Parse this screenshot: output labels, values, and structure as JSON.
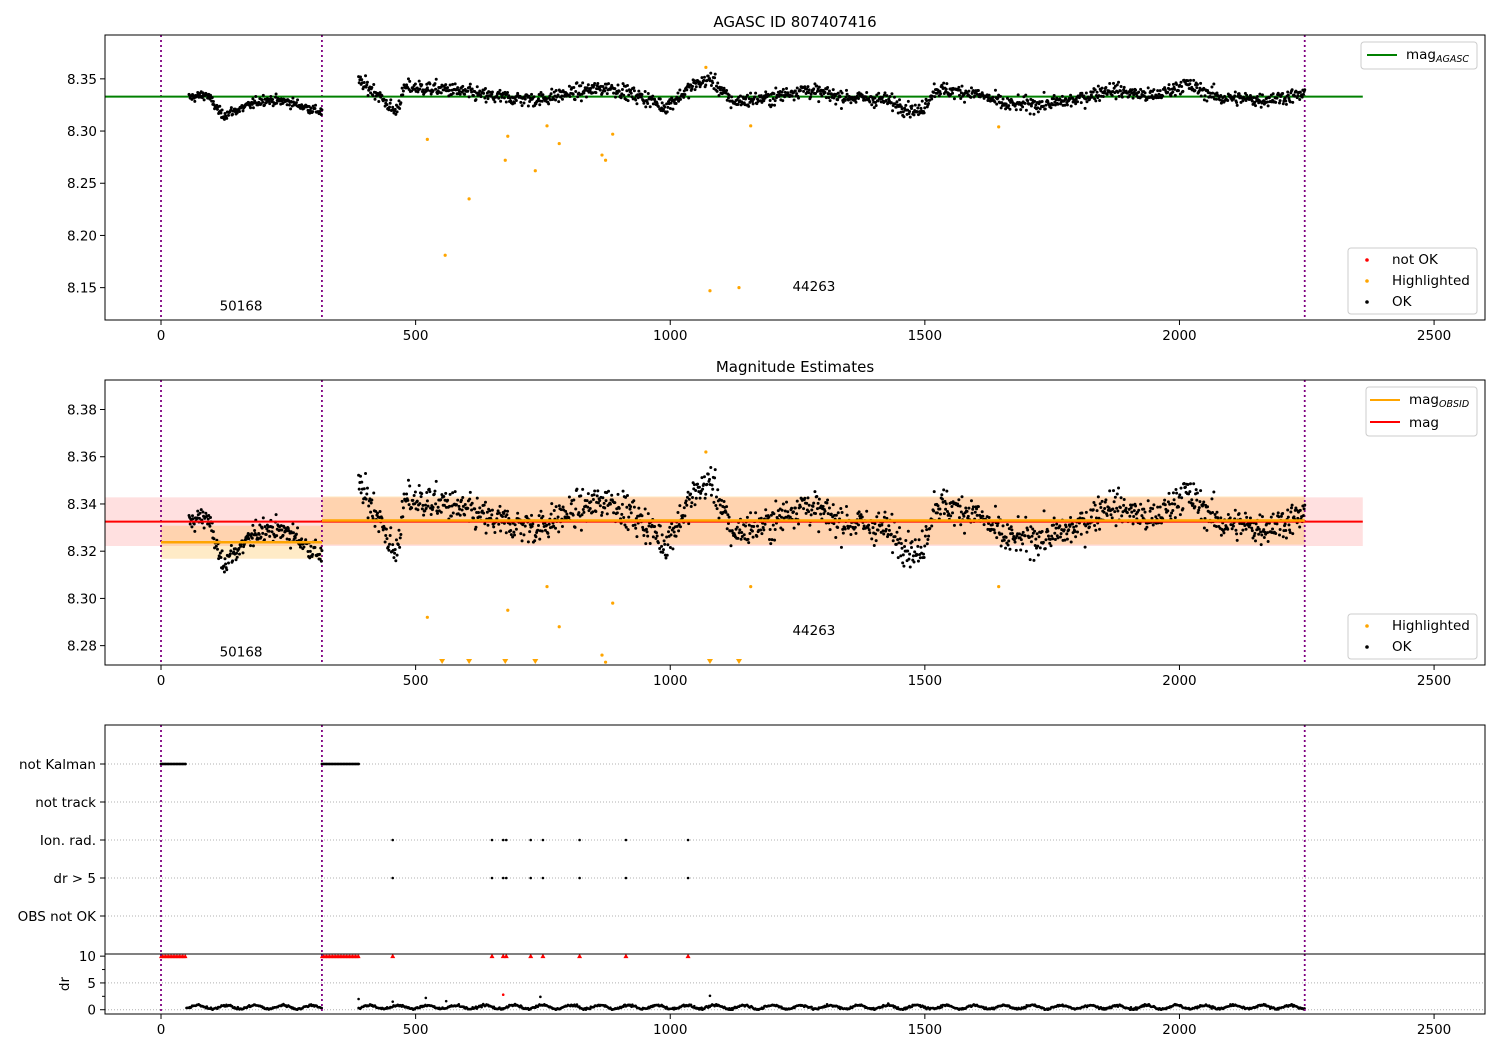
{
  "chart_data": [
    {
      "id": "agasc",
      "type": "scatter",
      "title": "AGASC ID 807407416",
      "xlim": [
        -110,
        2600
      ],
      "ylim": [
        8.119,
        8.392
      ],
      "xticks": [
        0,
        500,
        1000,
        1500,
        2000,
        2500
      ],
      "yticks": [
        8.15,
        8.2,
        8.25,
        8.3,
        8.35
      ],
      "vlines": [
        0,
        316,
        2246
      ],
      "obsid_labels": [
        {
          "text": "50168",
          "x": 115,
          "y": 8.128
        },
        {
          "text": "44263",
          "x": 1240,
          "y": 8.147
        }
      ],
      "mag_line": {
        "name": "mag",
        "sub": "AGASC",
        "value": 8.333,
        "x": [
          -110,
          2360
        ],
        "color": "#008000"
      },
      "legend_top": [
        {
          "label": "mag",
          "sub": "AGASC",
          "color": "#008000"
        }
      ],
      "legend_bottom": [
        {
          "label": "not OK",
          "color": "#ff0000"
        },
        {
          "label": "Highlighted",
          "color": "#ffa500"
        },
        {
          "label": "OK",
          "color": "#000000"
        }
      ],
      "ok_segments": [
        {
          "x0": 55,
          "x1": 316,
          "n": 230,
          "trend": [
            [
              55,
              8.332
            ],
            [
              90,
              8.335
            ],
            [
              120,
              8.315
            ],
            [
              160,
              8.322
            ],
            [
              200,
              8.33
            ],
            [
              250,
              8.328
            ],
            [
              290,
              8.322
            ],
            [
              316,
              8.318
            ]
          ],
          "noise": 0.004
        },
        {
          "x0": 388,
          "x1": 2246,
          "n": 1500,
          "trend": [
            [
              388,
              8.347
            ],
            [
              420,
              8.338
            ],
            [
              460,
              8.318
            ],
            [
              480,
              8.342
            ],
            [
              560,
              8.34
            ],
            [
              650,
              8.333
            ],
            [
              740,
              8.33
            ],
            [
              800,
              8.336
            ],
            [
              880,
              8.342
            ],
            [
              960,
              8.33
            ],
            [
              990,
              8.323
            ],
            [
              1050,
              8.345
            ],
            [
              1080,
              8.35
            ],
            [
              1120,
              8.328
            ],
            [
              1200,
              8.332
            ],
            [
              1260,
              8.34
            ],
            [
              1330,
              8.333
            ],
            [
              1420,
              8.33
            ],
            [
              1490,
              8.318
            ],
            [
              1520,
              8.34
            ],
            [
              1600,
              8.336
            ],
            [
              1660,
              8.325
            ],
            [
              1740,
              8.326
            ],
            [
              1800,
              8.33
            ],
            [
              1860,
              8.34
            ],
            [
              1950,
              8.333
            ],
            [
              2010,
              8.345
            ],
            [
              2080,
              8.332
            ],
            [
              2160,
              8.33
            ],
            [
              2246,
              8.335
            ]
          ],
          "noise": 0.006
        }
      ],
      "highlighted": [
        [
          523,
          8.292
        ],
        [
          558,
          8.181
        ],
        [
          605,
          8.235
        ],
        [
          676,
          8.272
        ],
        [
          681,
          8.295
        ],
        [
          735,
          8.262
        ],
        [
          758,
          8.305
        ],
        [
          782,
          8.288
        ],
        [
          866,
          8.277
        ],
        [
          873,
          8.272
        ],
        [
          887,
          8.297
        ],
        [
          1070,
          8.361
        ],
        [
          1078,
          8.147
        ],
        [
          1135,
          8.15
        ],
        [
          1158,
          8.305
        ],
        [
          1645,
          8.304
        ]
      ]
    },
    {
      "id": "estimates",
      "type": "scatter",
      "title": "Magnitude Estimates",
      "xlim": [
        -110,
        2600
      ],
      "ylim": [
        8.2718,
        8.3925
      ],
      "xticks": [
        0,
        500,
        1000,
        1500,
        2000,
        2500
      ],
      "yticks": [
        8.28,
        8.3,
        8.32,
        8.34,
        8.36,
        8.38
      ],
      "vlines": [
        0,
        316,
        2246
      ],
      "obsid_labels": [
        {
          "text": "50168",
          "x": 115,
          "y": 8.2755
        },
        {
          "text": "44263",
          "x": 1240,
          "y": 8.2845
        }
      ],
      "mag_line": {
        "name": "mag",
        "value": 8.3325,
        "band": [
          8.3222,
          8.3428
        ],
        "x": [
          -110,
          2360
        ],
        "color": "#ff0000"
      },
      "obsid_lines": [
        {
          "x0": 0,
          "x1": 316,
          "value": 8.3238,
          "band": [
            8.3168,
            8.3308
          ]
        },
        {
          "x0": 316,
          "x1": 2246,
          "value": 8.333,
          "band": [
            8.3228,
            8.3432
          ]
        }
      ],
      "legend_top": [
        {
          "label": "mag",
          "sub": "OBSID",
          "color": "#ffa500"
        },
        {
          "label": "mag",
          "color": "#ff0000"
        }
      ],
      "legend_bottom": [
        {
          "label": "Highlighted",
          "color": "#ffa500"
        },
        {
          "label": "OK",
          "color": "#000000"
        }
      ],
      "highlighted": [
        [
          523,
          8.292
        ],
        [
          681,
          8.295
        ],
        [
          758,
          8.305
        ],
        [
          782,
          8.288
        ],
        [
          866,
          8.276
        ],
        [
          873,
          8.273
        ],
        [
          887,
          8.298
        ],
        [
          1070,
          8.362
        ],
        [
          1158,
          8.305
        ],
        [
          1645,
          8.305
        ]
      ],
      "clipped": [
        552,
        605,
        676,
        735,
        1078,
        1135
      ]
    },
    {
      "id": "flags",
      "type": "scatter",
      "xlim": [
        -110,
        2600
      ],
      "xticks": [
        0,
        500,
        1000,
        1500,
        2000,
        2500
      ],
      "vlines": [
        0,
        316,
        2246
      ],
      "flag_rows": [
        "not Kalman",
        "not track",
        "Ion. rad.",
        "dr > 5",
        "OBS not OK"
      ],
      "flags": {
        "not Kalman": [
          [
            0,
            50
          ],
          [
            316,
            390
          ]
        ],
        "Ion. rad.": [
          455,
          650,
          672,
          678,
          726,
          750,
          822,
          913,
          1035
        ],
        "dr > 5": [
          455,
          650,
          672,
          678,
          726,
          750,
          822,
          913,
          1035
        ]
      },
      "dr": {
        "ylabel": "dr",
        "yticks": [
          0,
          5,
          10
        ],
        "ylim": [
          -0.8,
          10.4
        ],
        "clip_value": 10,
        "segments": [
          [
            50,
            316
          ],
          [
            388,
            2246
          ]
        ],
        "spikes": [
          [
            388,
            2.0
          ],
          [
            455,
            1.5
          ],
          [
            520,
            2.2
          ],
          [
            560,
            1.6
          ],
          [
            672,
            2.8
          ],
          [
            745,
            2.4
          ],
          [
            1078,
            2.6
          ]
        ]
      }
    }
  ]
}
